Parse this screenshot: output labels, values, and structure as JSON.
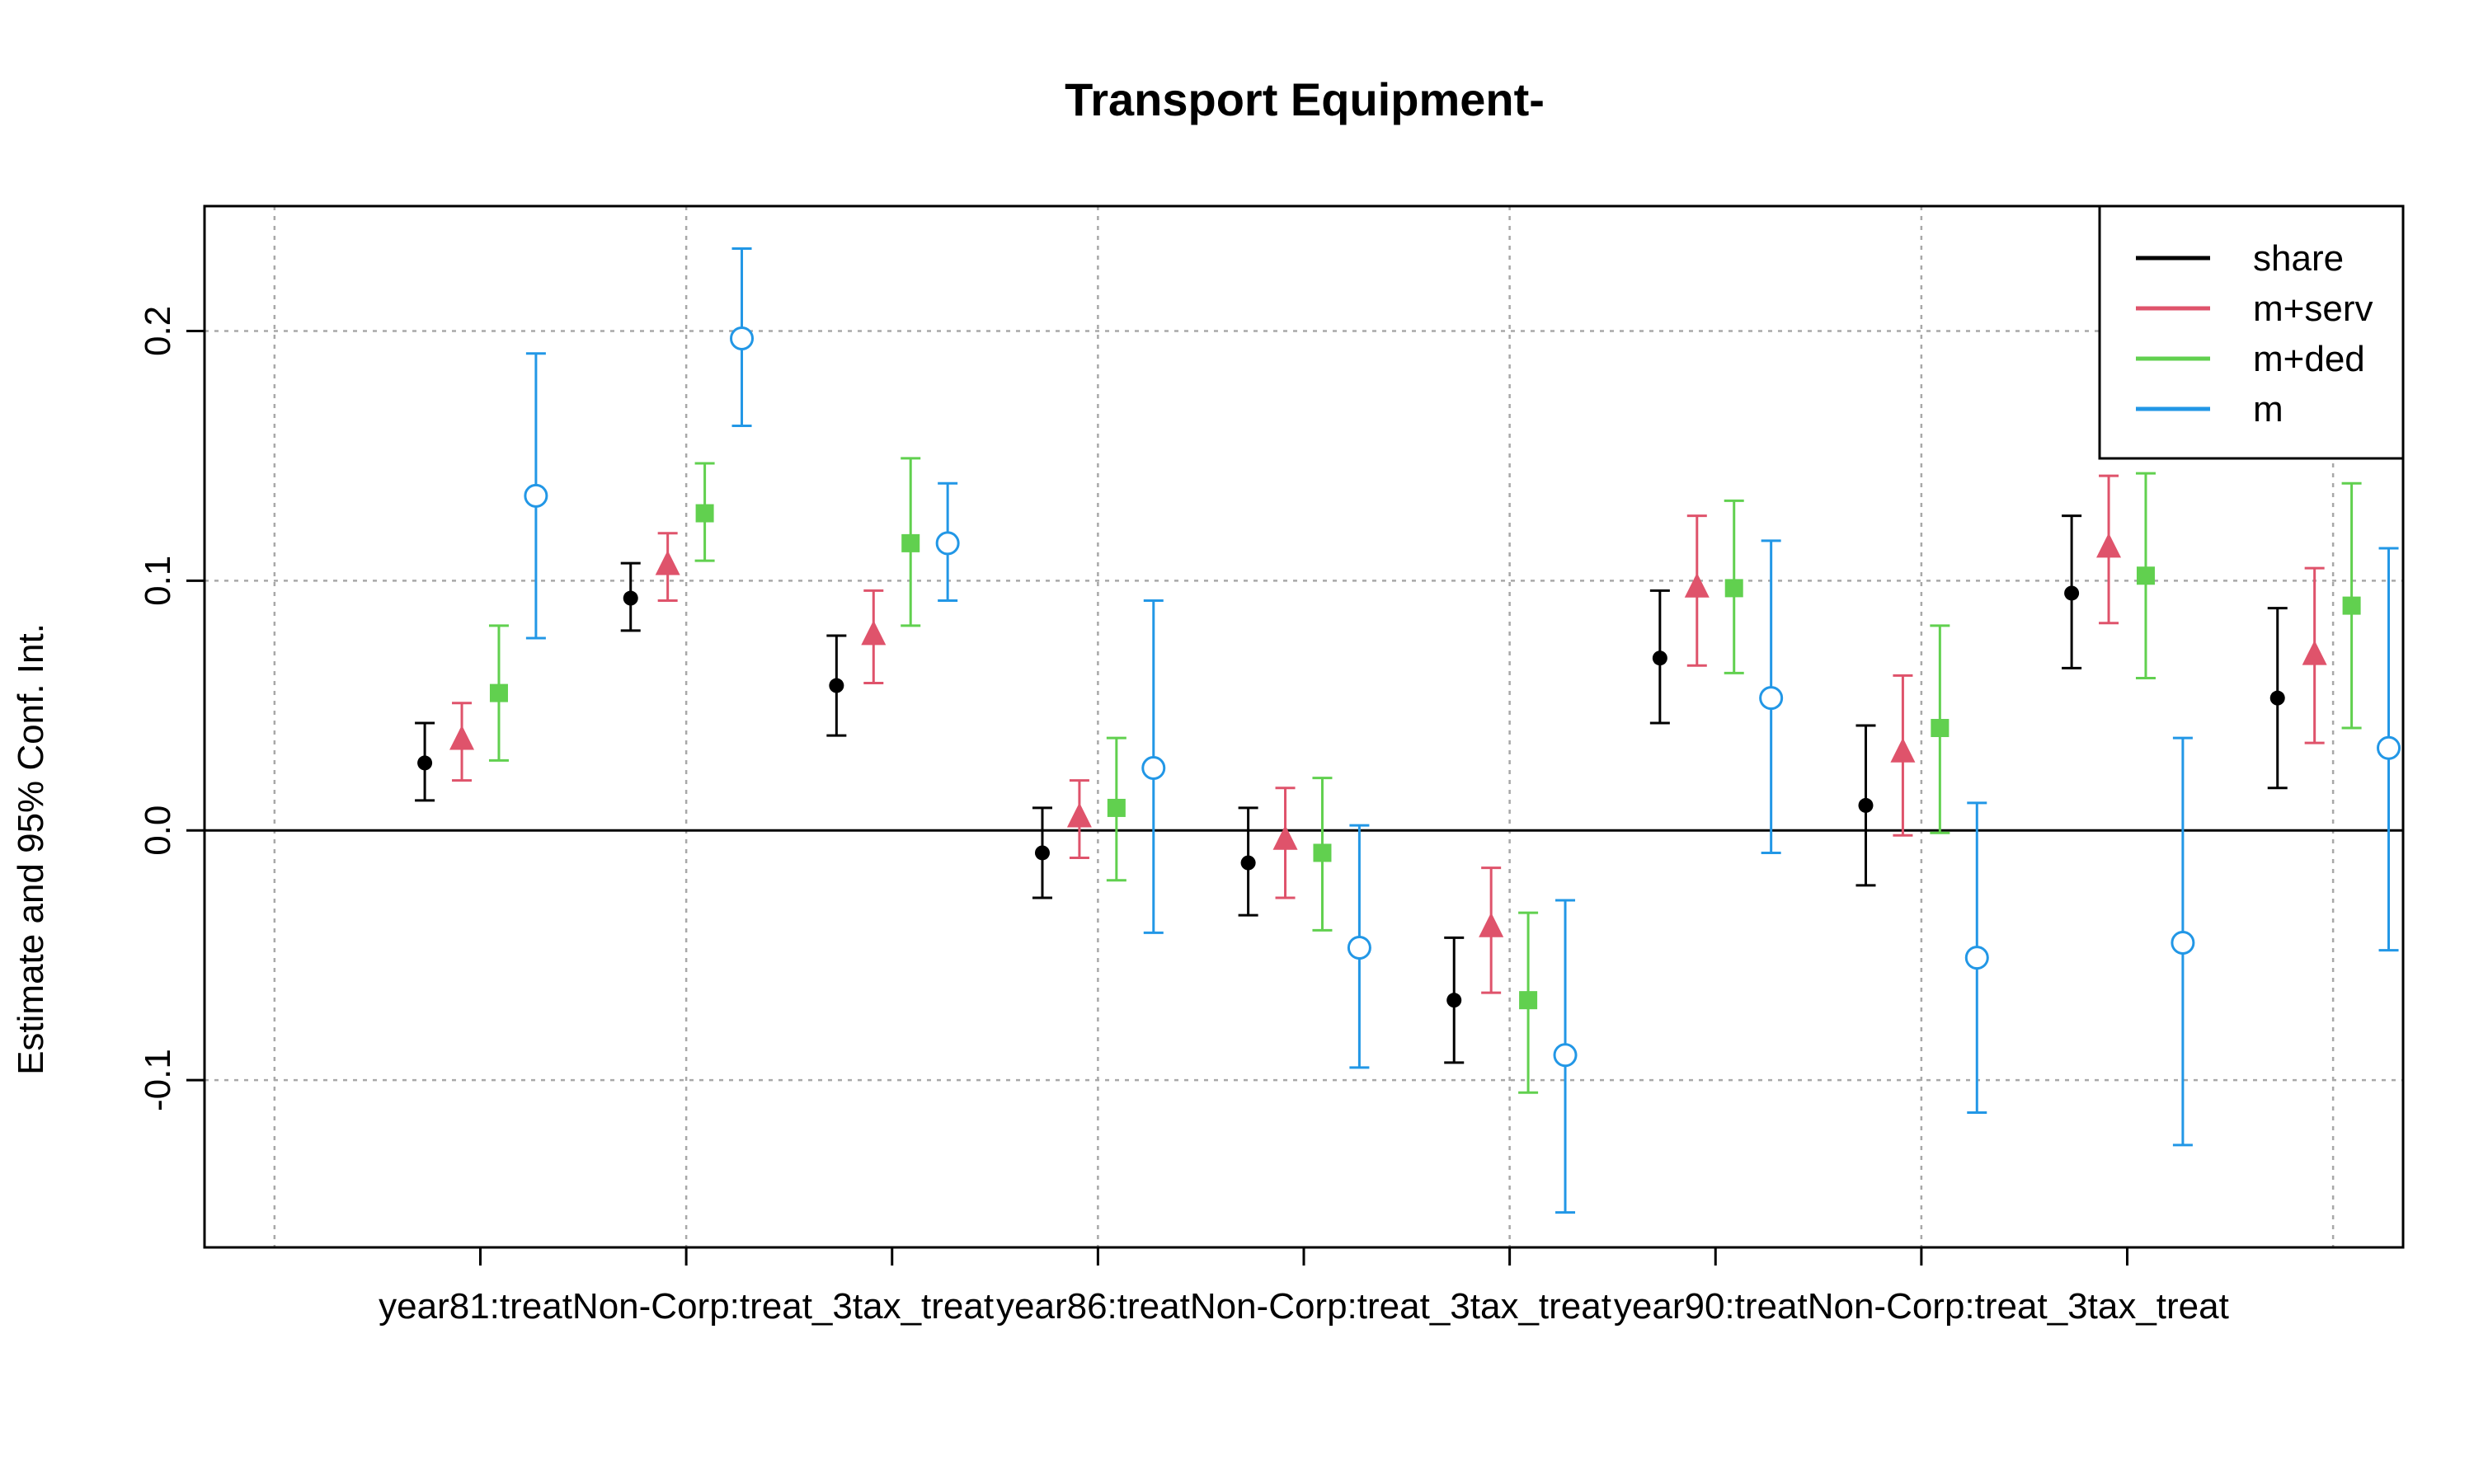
{
  "chart_data": {
    "type": "errorbar",
    "title": "Transport Equipment-",
    "xlabel": "",
    "ylabel": "Estimate and 95% Conf. Int.",
    "ylim": [
      -0.167,
      0.25
    ],
    "xlim": [
      0.66,
      11.34
    ],
    "yticks": [
      -0.1,
      0.0,
      0.1,
      0.2
    ],
    "ytick_labels": [
      "-0.1",
      "0.0",
      "0.1",
      "0.2"
    ],
    "xtick_positions": [
      2,
      3,
      4,
      5,
      6,
      7,
      8,
      9,
      10
    ],
    "xtick_labels": [
      {
        "label": "year81:treatNon-Corp:treat_3tax_treat",
        "at": 3
      },
      {
        "label": "year86:treatNon-Corp:treat_3tax_treat",
        "at": 6
      },
      {
        "label": "year90:treatNon-Corp:treat_3tax_treat",
        "at": 9
      }
    ],
    "vertical_gridlines": [
      1,
      3,
      5,
      7,
      9,
      11
    ],
    "grid": true,
    "zero_line": 0,
    "legend_position": "top-right",
    "categories": [
      1,
      2,
      3,
      4,
      5,
      6,
      7,
      8,
      9,
      10
    ],
    "series": [
      {
        "name": "share",
        "color": "#000000",
        "marker": "dot",
        "x": [
          1.73,
          2.73,
          3.73,
          4.73,
          5.73,
          6.73,
          7.73,
          8.73,
          9.73,
          10.73
        ],
        "estimates": [
          0.027,
          0.093,
          0.058,
          -0.009,
          -0.013,
          -0.068,
          0.069,
          0.01,
          0.095,
          0.053
        ],
        "lower": [
          0.012,
          0.08,
          0.038,
          -0.027,
          -0.034,
          -0.093,
          0.043,
          -0.022,
          0.065,
          0.017
        ],
        "upper": [
          0.043,
          0.107,
          0.078,
          0.009,
          0.009,
          -0.043,
          0.096,
          0.042,
          0.126,
          0.089
        ]
      },
      {
        "name": "m+serv",
        "color": "#DF536B",
        "marker": "triangle",
        "x": [
          1.91,
          2.91,
          3.91,
          4.91,
          5.91,
          6.91,
          7.91,
          8.91,
          9.91,
          10.91
        ],
        "estimates": [
          0.036,
          0.106,
          0.078,
          0.005,
          -0.004,
          -0.039,
          0.097,
          0.031,
          0.113,
          0.07
        ],
        "lower": [
          0.02,
          0.092,
          0.059,
          -0.011,
          -0.027,
          -0.065,
          0.066,
          -0.002,
          0.083,
          0.035
        ],
        "upper": [
          0.051,
          0.119,
          0.096,
          0.02,
          0.017,
          -0.015,
          0.126,
          0.062,
          0.142,
          0.105
        ]
      },
      {
        "name": "m+ded",
        "color": "#61D04F",
        "marker": "square",
        "x": [
          2.09,
          3.09,
          4.09,
          5.09,
          6.09,
          7.09,
          8.09,
          9.09,
          10.09,
          11.09
        ],
        "estimates": [
          0.055,
          0.127,
          0.115,
          0.009,
          -0.009,
          -0.068,
          0.097,
          0.041,
          0.102,
          0.09
        ],
        "lower": [
          0.028,
          0.108,
          0.082,
          -0.02,
          -0.04,
          -0.105,
          0.063,
          -0.001,
          0.061,
          0.041
        ],
        "upper": [
          0.082,
          0.147,
          0.149,
          0.037,
          0.021,
          -0.033,
          0.132,
          0.082,
          0.143,
          0.139
        ]
      },
      {
        "name": "m",
        "color": "#2297E6",
        "marker": "open-circle",
        "x": [
          2.27,
          3.27,
          4.27,
          5.27,
          6.27,
          7.27,
          8.27,
          9.27,
          10.27,
          11.27
        ],
        "estimates": [
          0.134,
          0.197,
          0.115,
          0.025,
          -0.047,
          -0.09,
          0.053,
          -0.051,
          -0.045,
          0.033
        ],
        "lower": [
          0.077,
          0.162,
          0.092,
          -0.041,
          -0.095,
          -0.153,
          -0.009,
          -0.113,
          -0.126,
          -0.048
        ],
        "upper": [
          0.191,
          0.233,
          0.139,
          0.092,
          0.002,
          -0.028,
          0.116,
          0.011,
          0.037,
          0.113
        ]
      }
    ]
  }
}
